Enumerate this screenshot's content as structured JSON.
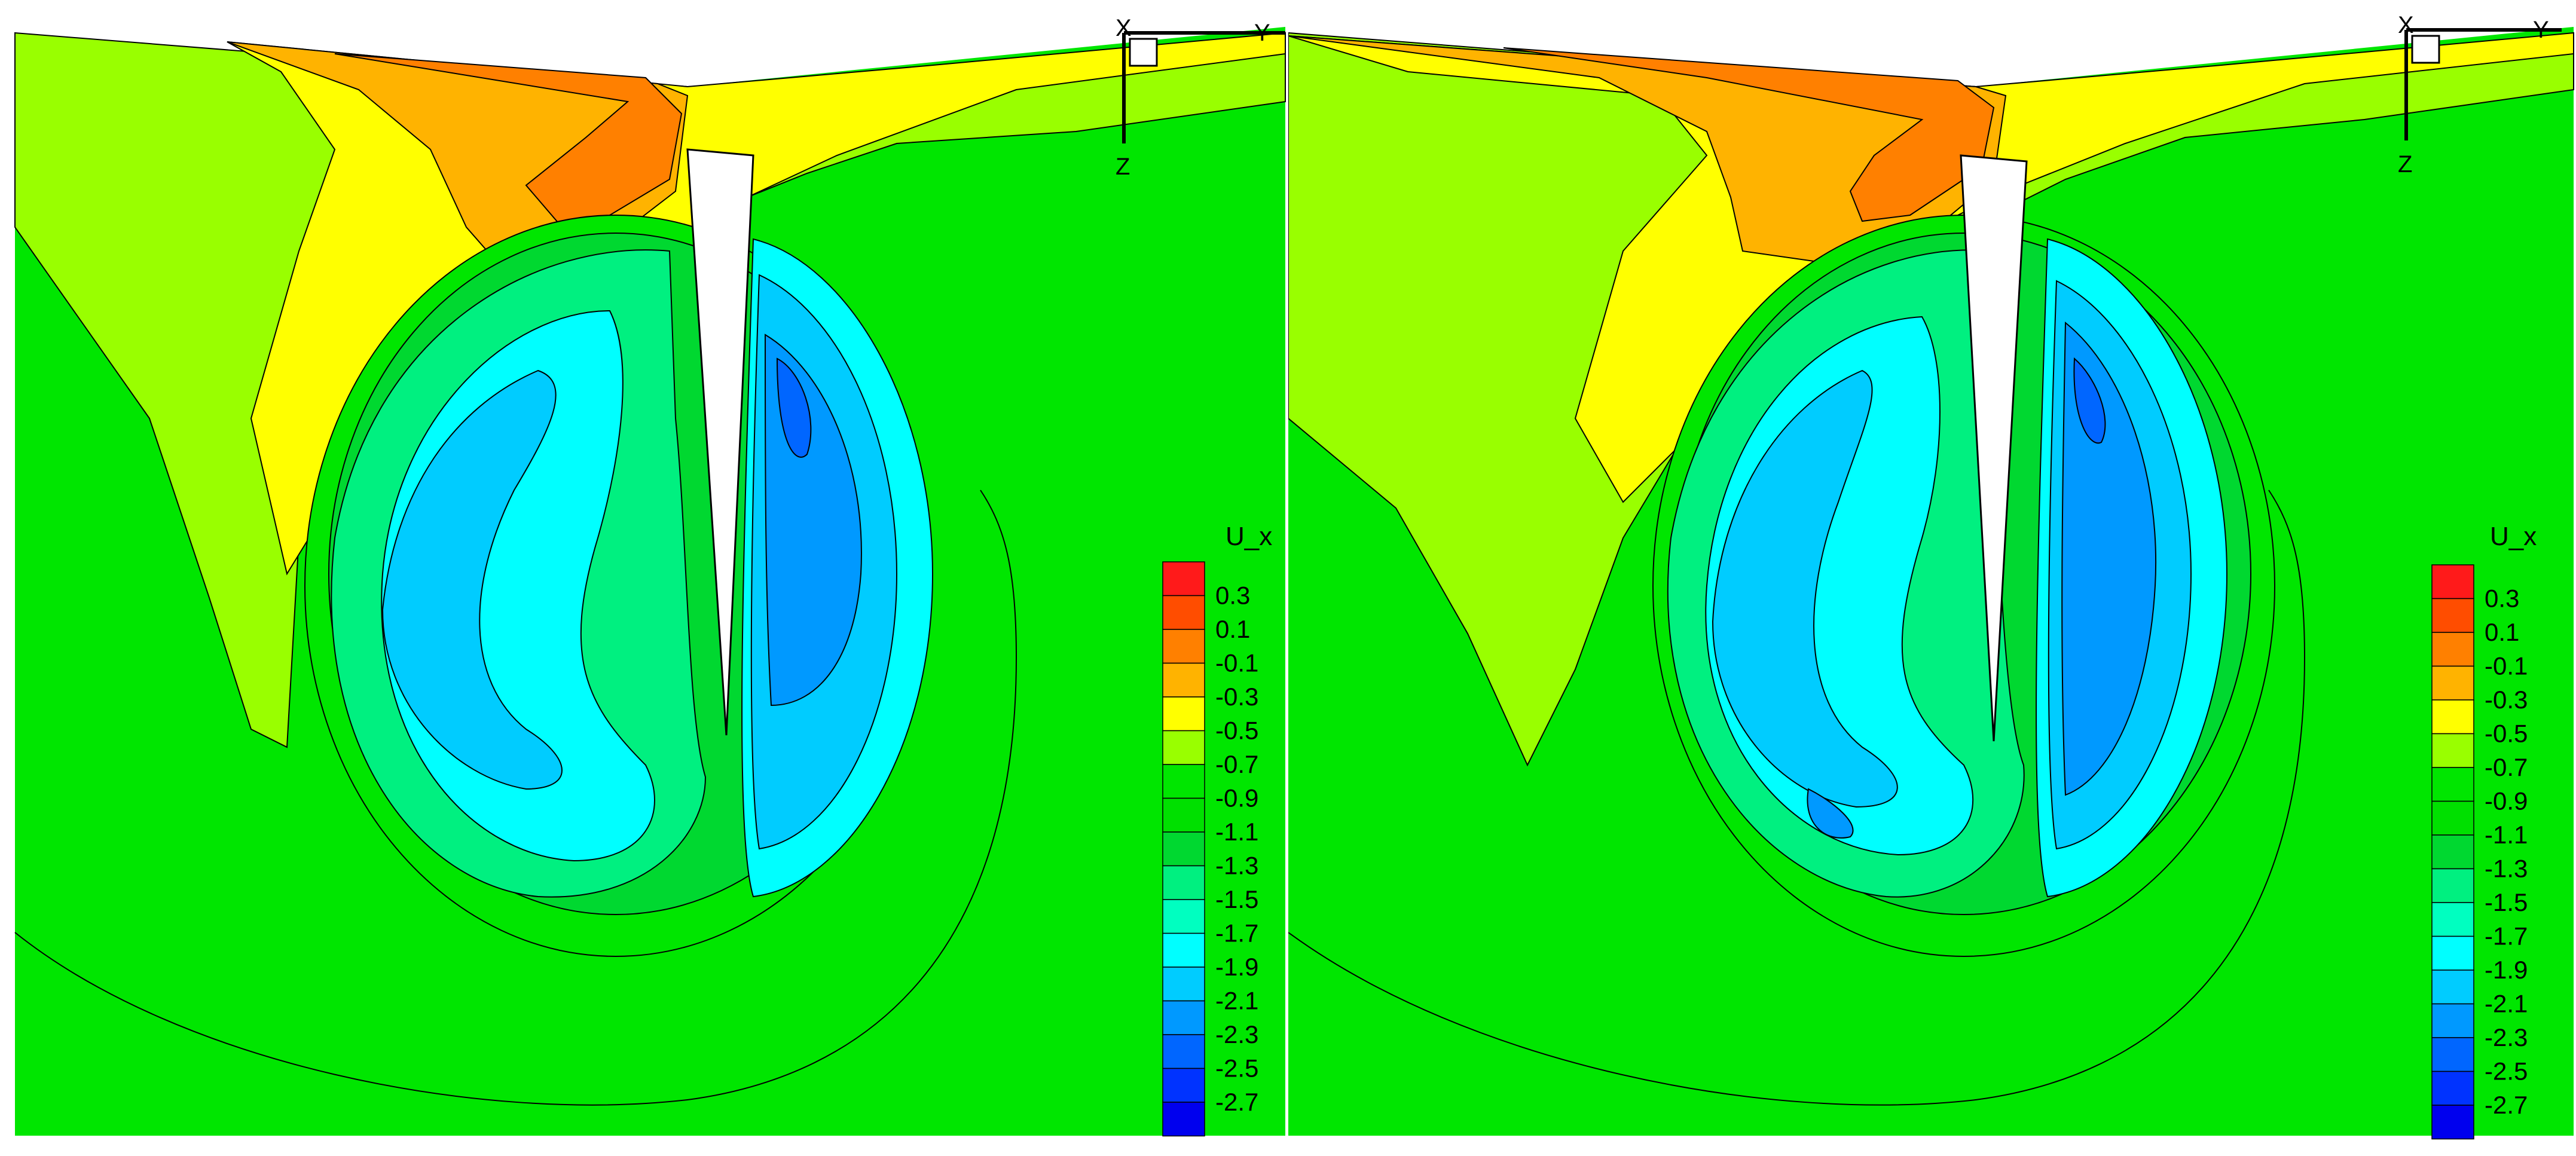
{
  "chart_data": [
    {
      "type": "heatmap",
      "variable": "U_x",
      "legend": {
        "title": "U_x",
        "ticks": [
          "0.3",
          "0.1",
          "-0.1",
          "-0.3",
          "-0.5",
          "-0.7",
          "-0.9",
          "-1.1",
          "-1.3",
          "-1.5",
          "-1.7",
          "-1.9",
          "-2.1",
          "-2.3",
          "-2.5",
          "-2.7"
        ],
        "colors": [
          "#ff1a1a",
          "#ff4d00",
          "#ff8000",
          "#ffb300",
          "#ffff00",
          "#99ff00",
          "#00e600",
          "#00e000",
          "#00d830",
          "#00f080",
          "#00ffc0",
          "#00ffff",
          "#00ccff",
          "#0099ff",
          "#0066ff",
          "#0033ff",
          "#0000ee"
        ],
        "placement": "right"
      },
      "axes_triad": {
        "x": "X",
        "y": "Y",
        "z": "Z"
      }
    },
    {
      "type": "heatmap",
      "variable": "U_x",
      "legend": {
        "title": "U_x",
        "ticks": [
          "0.3",
          "0.1",
          "-0.1",
          "-0.3",
          "-0.5",
          "-0.7",
          "-0.9",
          "-1.1",
          "-1.3",
          "-1.5",
          "-1.7",
          "-1.9",
          "-2.1",
          "-2.3",
          "-2.5",
          "-2.7"
        ],
        "colors": [
          "#ff1a1a",
          "#ff4d00",
          "#ff8000",
          "#ffb300",
          "#ffff00",
          "#99ff00",
          "#00e600",
          "#00e000",
          "#00d830",
          "#00f080",
          "#00ffc0",
          "#00ffff",
          "#00ccff",
          "#0099ff",
          "#0066ff",
          "#0033ff",
          "#0000ee"
        ],
        "placement": "right"
      },
      "axes_triad": {
        "x": "X",
        "y": "Y",
        "z": "Z"
      }
    }
  ]
}
